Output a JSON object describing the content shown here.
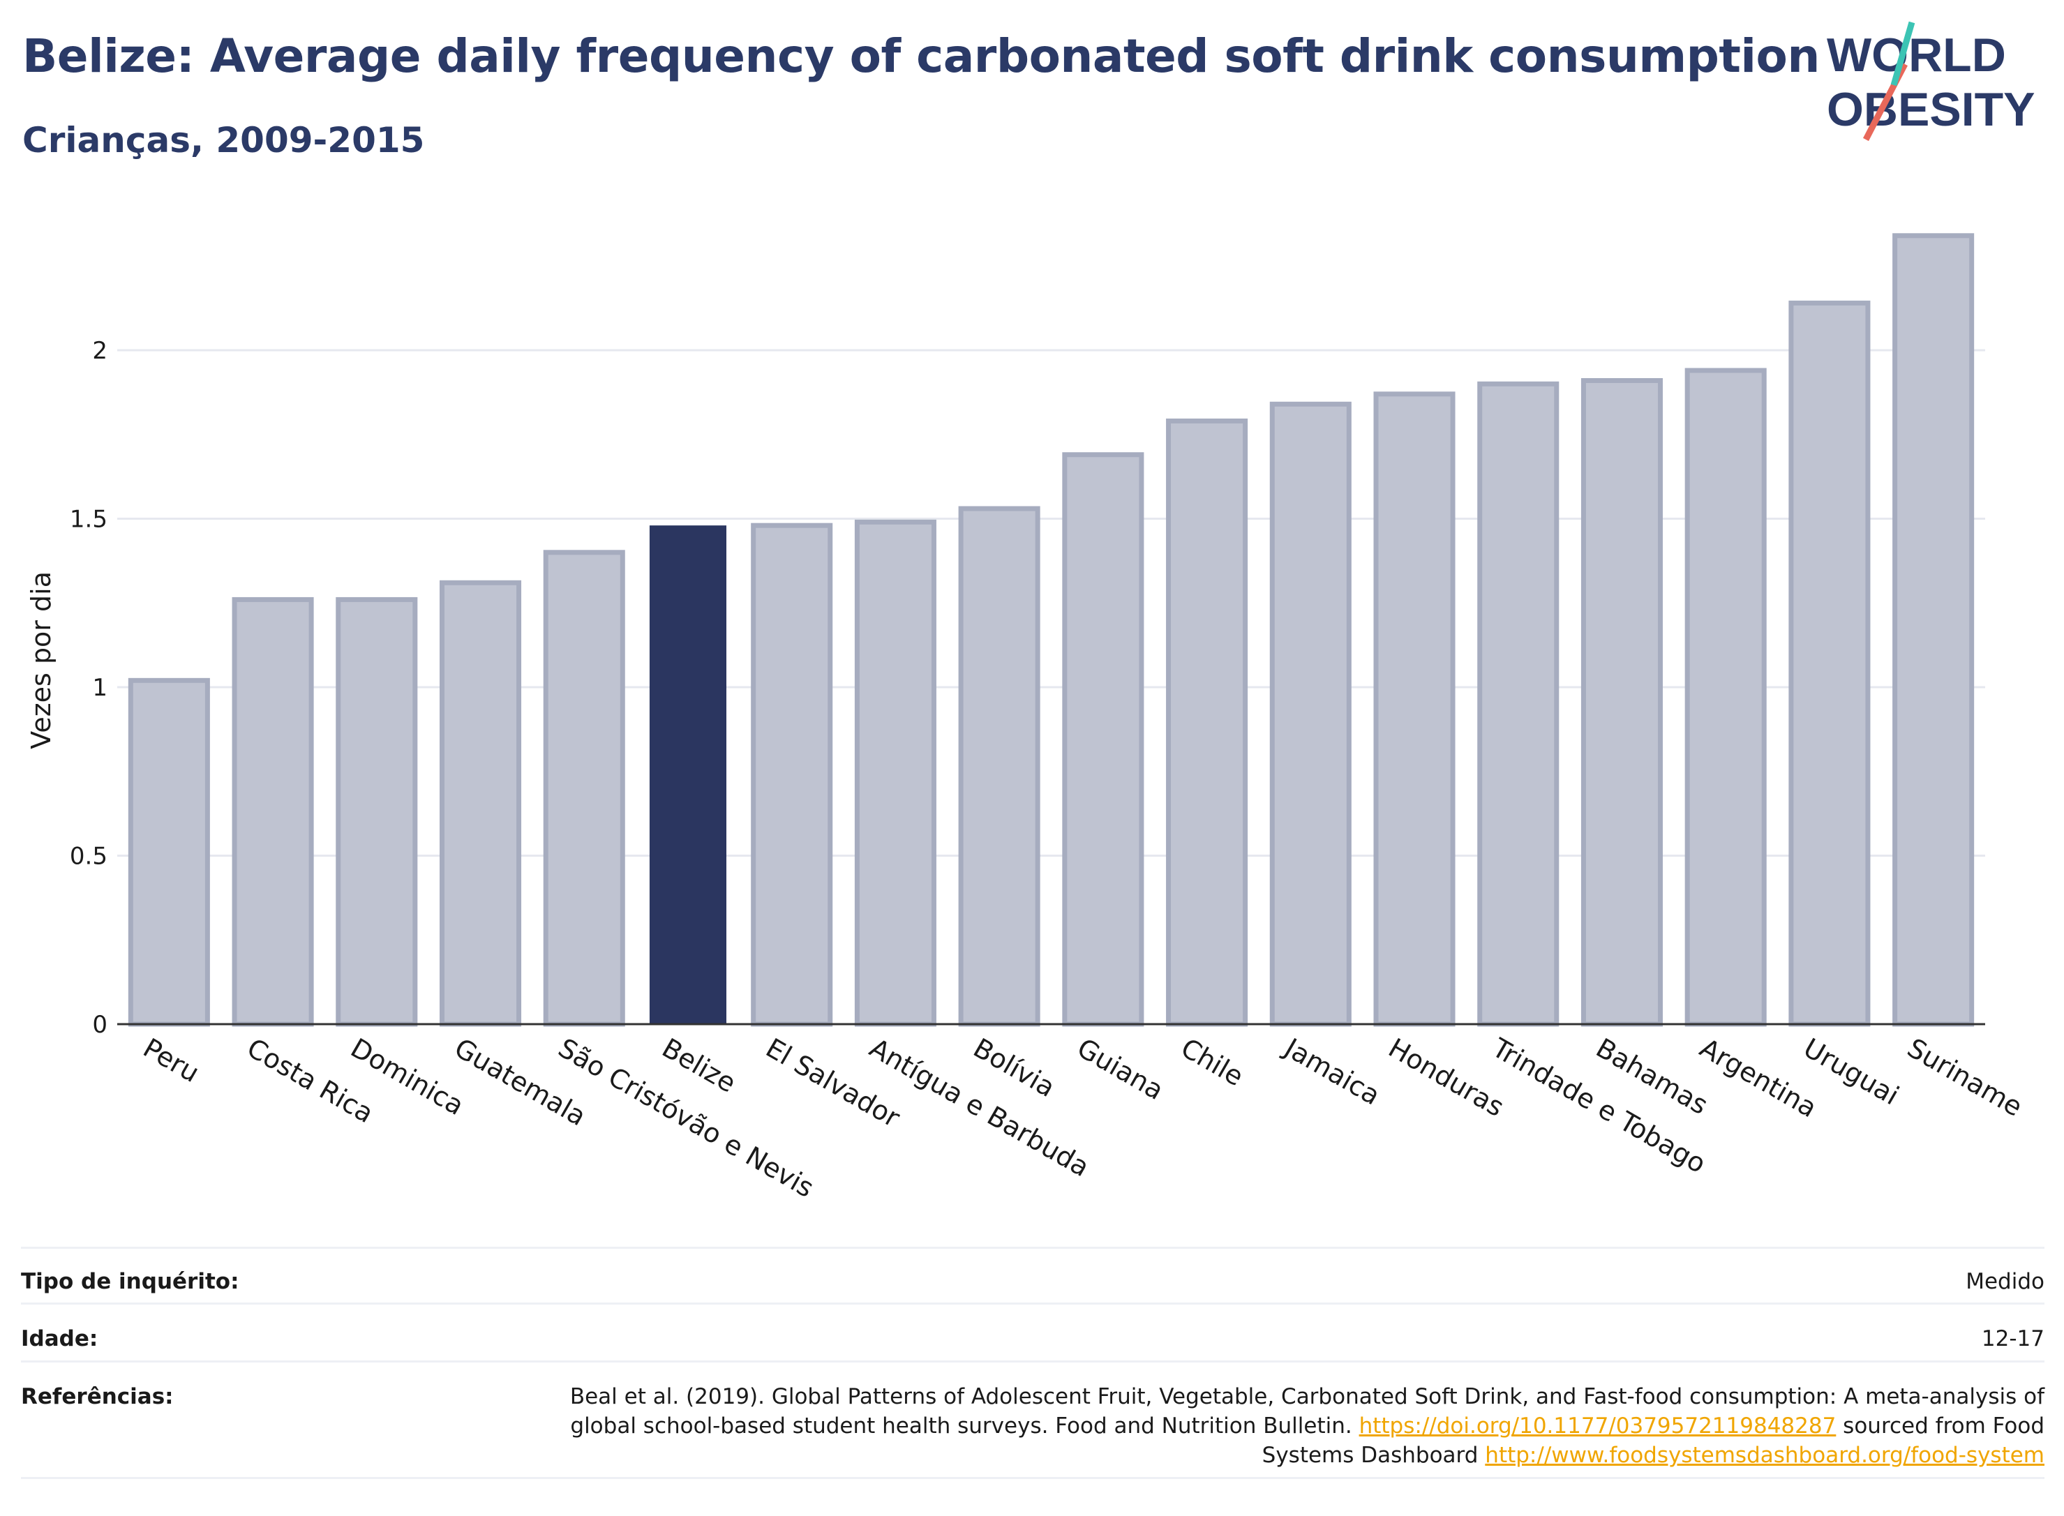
{
  "header": {
    "title": "Belize: Average daily frequency of carbonated soft drink consumption",
    "subtitle": "Crianças, 2009-2015"
  },
  "logo": {
    "line1": "WORLD",
    "line2": "OBESITY"
  },
  "colors": {
    "bar": "#bfc3d1",
    "bar_stroke": "#a6acbf",
    "highlight": "#2b3660",
    "grid": "#e6e8ef",
    "axis": "#333333",
    "title": "#2b3a67",
    "link": "#f0a500"
  },
  "chart_data": {
    "type": "bar",
    "title": "Belize: Average daily frequency of carbonated soft drink consumption",
    "subtitle": "Crianças, 2009-2015",
    "xlabel": "",
    "ylabel": "Vezes por dia",
    "ylim": [
      0,
      2.45
    ],
    "yticks": [
      0,
      0.5,
      1,
      1.5,
      2
    ],
    "ytick_labels": [
      "0",
      "0.5",
      "1",
      "1.5",
      "2"
    ],
    "grid": true,
    "highlight": "Belize",
    "categories": [
      "Peru",
      "Costa Rica",
      "Dominica",
      "Guatemala",
      "São Cristóvão e Nevis",
      "Belize",
      "El Salvador",
      "Antígua e Barbuda",
      "Bolívia",
      "Guiana",
      "Chile",
      "Jamaica",
      "Honduras",
      "Trindade e Tobago",
      "Bahamas",
      "Argentina",
      "Uruguai",
      "Suriname"
    ],
    "values": [
      1.02,
      1.26,
      1.26,
      1.31,
      1.4,
      1.48,
      1.48,
      1.49,
      1.53,
      1.69,
      1.79,
      1.84,
      1.87,
      1.9,
      1.91,
      1.94,
      2.14,
      2.34
    ]
  },
  "footer": {
    "survey_label": "Tipo de inquérito:",
    "survey_value": "Medido",
    "age_label": "Idade:",
    "age_value": "12-17",
    "ref_label": "Referências:",
    "ref_text1": "Beal et al. (2019). Global Patterns of Adolescent Fruit, Vegetable, Carbonated Soft Drink, and Fast-food consumption: A meta-analysis of global school-based student health surveys. Food and Nutrition Bulletin. ",
    "ref_link1": "https://doi.org/10.1177/0379572119848287",
    "ref_text2": " sourced from Food Systems Dashboard ",
    "ref_link2": "http://www.foodsystemsdashboard.org/food-system"
  }
}
